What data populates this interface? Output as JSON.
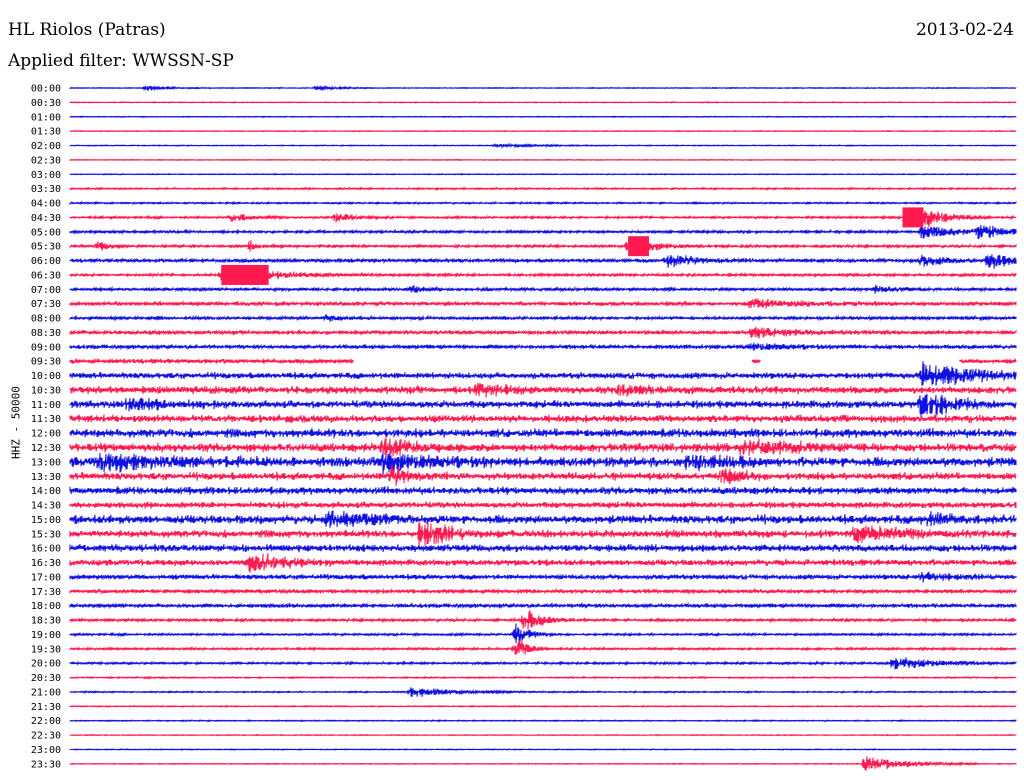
{
  "header": {
    "station": "HL Riolos (Patras)",
    "date": "2013-02-24",
    "filter": "Applied filter: WWSSN-SP"
  },
  "chart_data": {
    "type": "line",
    "ylabel": "HHZ - 50000",
    "colors": {
      "even": "#1010e0",
      "odd": "#ff1a4f"
    },
    "rows": [
      "00:00",
      "00:30",
      "01:00",
      "01:30",
      "02:00",
      "02:30",
      "03:00",
      "03:30",
      "04:00",
      "04:30",
      "05:00",
      "05:30",
      "06:00",
      "06:30",
      "07:00",
      "07:30",
      "08:00",
      "08:30",
      "09:00",
      "09:30",
      "10:00",
      "10:30",
      "11:00",
      "11:30",
      "12:00",
      "12:30",
      "13:00",
      "13:30",
      "14:00",
      "14:30",
      "15:00",
      "15:30",
      "16:00",
      "16:30",
      "17:00",
      "17:30",
      "18:00",
      "18:30",
      "19:00",
      "19:30",
      "20:00",
      "20:30",
      "21:00",
      "21:30",
      "22:00",
      "22:30",
      "23:00",
      "23:30"
    ],
    "noise_level": [
      0.3,
      0.3,
      0.3,
      0.3,
      0.3,
      0.3,
      0.3,
      0.6,
      0.6,
      0.8,
      1.0,
      1.0,
      1.5,
      1.0,
      1.2,
      1.5,
      1.2,
      1.5,
      1.5,
      1.8,
      2.5,
      3.0,
      3.0,
      3.0,
      3.5,
      3.5,
      4.0,
      3.0,
      3.0,
      2.5,
      3.5,
      3.0,
      3.0,
      2.5,
      2.0,
      1.5,
      1.5,
      1.0,
      0.8,
      0.8,
      0.8,
      0.5,
      0.5,
      0.4,
      0.4,
      0.3,
      0.3,
      0.3
    ],
    "events": [
      {
        "row": 0,
        "pos": 0.08,
        "amp": 3,
        "dur": 0.02
      },
      {
        "row": 0,
        "pos": 0.26,
        "amp": 3,
        "dur": 0.02
      },
      {
        "row": 4,
        "pos": 0.45,
        "amp": 2,
        "dur": 0.04
      },
      {
        "row": 9,
        "pos": 0.17,
        "amp": 6,
        "dur": 0.02
      },
      {
        "row": 9,
        "pos": 0.28,
        "amp": 6,
        "dur": 0.02
      },
      {
        "row": 9,
        "pos": 0.9,
        "amp": 12,
        "dur": 0.025
      },
      {
        "row": 10,
        "pos": 0.9,
        "amp": 8,
        "dur": 0.04
      },
      {
        "row": 10,
        "pos": 0.96,
        "amp": 7,
        "dur": 0.03
      },
      {
        "row": 11,
        "pos": 0.03,
        "amp": 6,
        "dur": 0.01
      },
      {
        "row": 11,
        "pos": 0.19,
        "amp": 6,
        "dur": 0.01
      },
      {
        "row": 11,
        "pos": 0.59,
        "amp": 12,
        "dur": 0.025
      },
      {
        "row": 12,
        "pos": 0.63,
        "amp": 8,
        "dur": 0.03
      },
      {
        "row": 12,
        "pos": 0.9,
        "amp": 7,
        "dur": 0.02
      },
      {
        "row": 12,
        "pos": 0.97,
        "amp": 9,
        "dur": 0.03
      },
      {
        "row": 13,
        "pos": 0.16,
        "amp": 12,
        "dur": 0.05
      },
      {
        "row": 14,
        "pos": 0.36,
        "amp": 5,
        "dur": 0.01
      },
      {
        "row": 14,
        "pos": 0.85,
        "amp": 5,
        "dur": 0.02
      },
      {
        "row": 15,
        "pos": 0.72,
        "amp": 6,
        "dur": 0.05
      },
      {
        "row": 16,
        "pos": 0.27,
        "amp": 5,
        "dur": 0.01
      },
      {
        "row": 17,
        "pos": 0.72,
        "amp": 6,
        "dur": 0.05
      },
      {
        "row": 18,
        "pos": 0.72,
        "amp": 4,
        "dur": 0.04
      },
      {
        "row": 20,
        "pos": 0.9,
        "amp": 16,
        "dur": 0.05
      },
      {
        "row": 21,
        "pos": 0.43,
        "amp": 7,
        "dur": 0.03
      },
      {
        "row": 21,
        "pos": 0.58,
        "amp": 6,
        "dur": 0.03
      },
      {
        "row": 22,
        "pos": 0.06,
        "amp": 6,
        "dur": 0.04
      },
      {
        "row": 22,
        "pos": 0.9,
        "amp": 14,
        "dur": 0.03
      },
      {
        "row": 25,
        "pos": 0.33,
        "amp": 9,
        "dur": 0.03
      },
      {
        "row": 25,
        "pos": 0.71,
        "amp": 8,
        "dur": 0.05
      },
      {
        "row": 26,
        "pos": 0.03,
        "amp": 9,
        "dur": 0.06
      },
      {
        "row": 26,
        "pos": 0.33,
        "amp": 10,
        "dur": 0.04
      },
      {
        "row": 26,
        "pos": 0.65,
        "amp": 9,
        "dur": 0.03
      },
      {
        "row": 27,
        "pos": 0.34,
        "amp": 10,
        "dur": 0.02
      },
      {
        "row": 27,
        "pos": 0.69,
        "amp": 8,
        "dur": 0.02
      },
      {
        "row": 30,
        "pos": 0.27,
        "amp": 8,
        "dur": 0.04
      },
      {
        "row": 30,
        "pos": 0.9,
        "amp": 6,
        "dur": 0.03
      },
      {
        "row": 31,
        "pos": 0.37,
        "amp": 16,
        "dur": 0.03
      },
      {
        "row": 31,
        "pos": 0.83,
        "amp": 8,
        "dur": 0.05
      },
      {
        "row": 33,
        "pos": 0.19,
        "amp": 12,
        "dur": 0.03
      },
      {
        "row": 34,
        "pos": 0.9,
        "amp": 6,
        "dur": 0.03
      },
      {
        "row": 37,
        "pos": 0.48,
        "amp": 12,
        "dur": 0.02
      },
      {
        "row": 38,
        "pos": 0.47,
        "amp": 12,
        "dur": 0.015
      },
      {
        "row": 39,
        "pos": 0.47,
        "amp": 16,
        "dur": 0.012
      },
      {
        "row": 40,
        "pos": 0.87,
        "amp": 8,
        "dur": 0.04
      },
      {
        "row": 42,
        "pos": 0.36,
        "amp": 7,
        "dur": 0.04
      },
      {
        "row": 47,
        "pos": 0.84,
        "amp": 10,
        "dur": 0.04
      }
    ],
    "saturated_blocks": [
      {
        "row": 9,
        "pos": 0.88,
        "width": 0.022
      },
      {
        "row": 11,
        "pos": 0.59,
        "width": 0.022
      },
      {
        "row": 13,
        "pos": 0.16,
        "width": 0.05
      }
    ],
    "gaps": [
      {
        "row": 19,
        "start": 0.3,
        "end": 0.72
      },
      {
        "row": 19,
        "start": 0.73,
        "end": 0.94
      }
    ]
  }
}
